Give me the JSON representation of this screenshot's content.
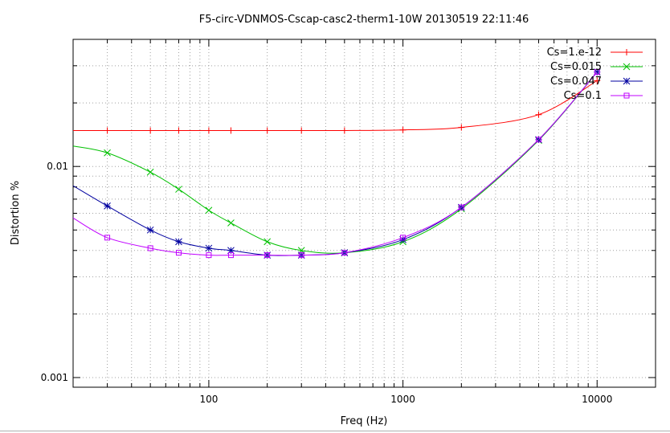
{
  "chart_data": {
    "type": "line",
    "title": "F5-circ-VDNMOS-Cscap-casc2-therm1-10W 20130519 22:11:46",
    "xlabel": "Freq (Hz)",
    "ylabel": "Distortion %",
    "x_scale": "log",
    "y_scale": "log",
    "xlim": [
      20,
      20000
    ],
    "ylim": [
      0.0009,
      0.04
    ],
    "x_ticks": [
      {
        "value": 100,
        "label": "100"
      },
      {
        "value": 1000,
        "label": "1000"
      },
      {
        "value": 10000,
        "label": "10000"
      }
    ],
    "y_ticks": [
      {
        "value": 0.001,
        "label": "0.001"
      },
      {
        "value": 0.01,
        "label": "0.01"
      }
    ],
    "grid": true,
    "legend_position": "top-right",
    "series": [
      {
        "name": "Cs=1.e-12",
        "color": "#ff0000",
        "marker": "plus",
        "x": [
          20,
          30,
          50,
          70,
          100,
          130,
          200,
          300,
          500,
          1000,
          2000,
          5000,
          10000
        ],
        "y": [
          0.0148,
          0.0148,
          0.0148,
          0.0148,
          0.0148,
          0.0148,
          0.0148,
          0.0148,
          0.0148,
          0.0149,
          0.0153,
          0.0176,
          0.0255
        ]
      },
      {
        "name": "Cs=0.015",
        "color": "#00c000",
        "marker": "cross",
        "x": [
          20,
          30,
          50,
          70,
          100,
          130,
          200,
          300,
          500,
          1000,
          2000,
          5000,
          10000
        ],
        "y": [
          0.0125,
          0.0116,
          0.0094,
          0.0078,
          0.0062,
          0.0054,
          0.0044,
          0.004,
          0.0039,
          0.0044,
          0.0063,
          0.0133,
          0.028
        ]
      },
      {
        "name": "Cs=0.047",
        "color": "#0000a0",
        "marker": "star",
        "x": [
          20,
          30,
          50,
          70,
          100,
          130,
          200,
          300,
          500,
          1000,
          2000,
          5000,
          10000
        ],
        "y": [
          0.0081,
          0.0065,
          0.005,
          0.0044,
          0.0041,
          0.004,
          0.0038,
          0.0038,
          0.0039,
          0.0045,
          0.0064,
          0.0134,
          0.028
        ]
      },
      {
        "name": "Cs=0.1",
        "color": "#c000ff",
        "marker": "square",
        "x": [
          20,
          30,
          50,
          70,
          100,
          130,
          200,
          300,
          500,
          1000,
          2000,
          5000,
          10000
        ],
        "y": [
          0.0057,
          0.0046,
          0.0041,
          0.0039,
          0.0038,
          0.0038,
          0.0038,
          0.0038,
          0.0039,
          0.0046,
          0.0064,
          0.0134,
          0.028
        ]
      }
    ]
  }
}
